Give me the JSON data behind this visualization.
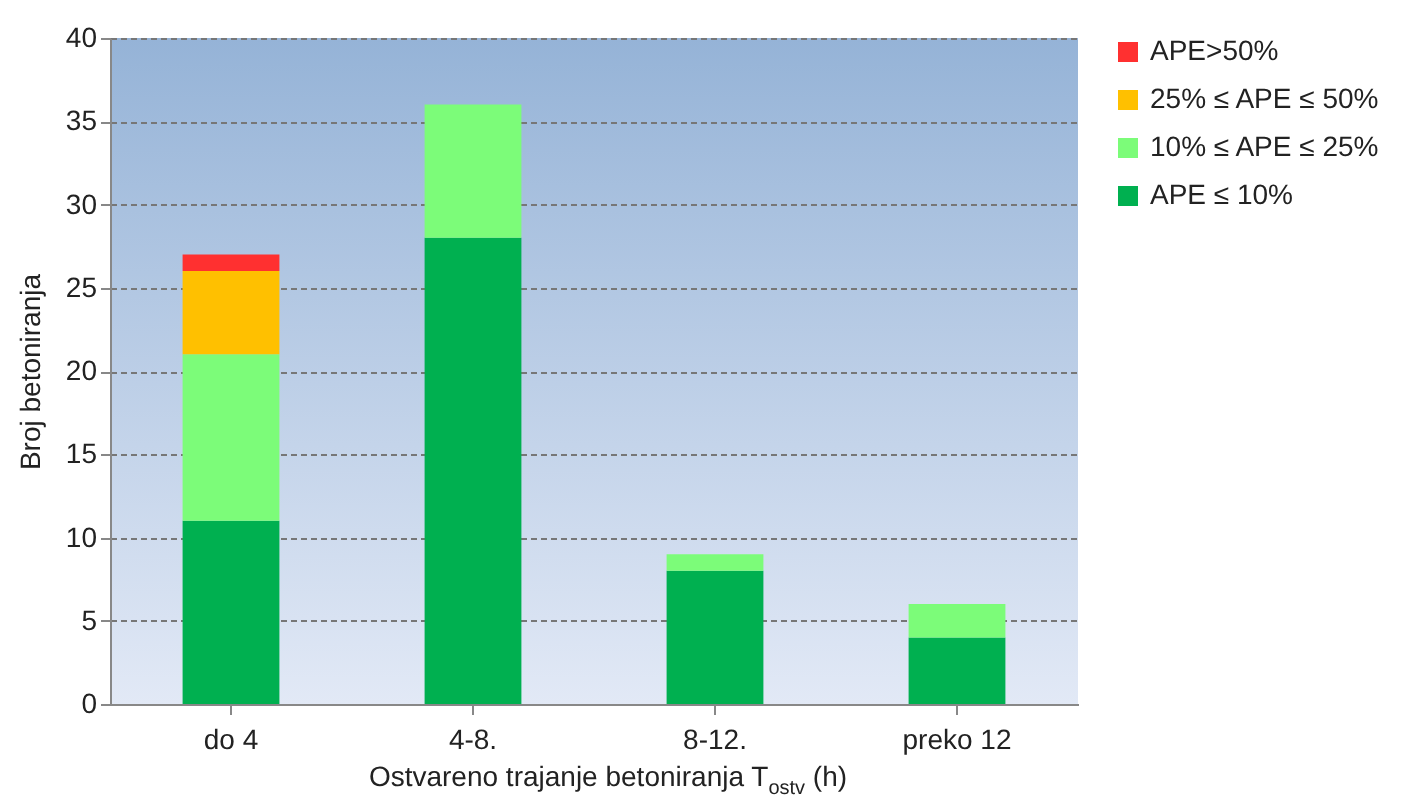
{
  "chart_data": {
    "type": "bar",
    "stacked": true,
    "xlabel": "Ostvareno trajanje  betoniranja T$_{ostv}$ (h)",
    "ylabel": "Broj betoniranja",
    "categories": [
      "do 4",
      "4-8.",
      "8-12.",
      "preko 12"
    ],
    "series": [
      {
        "name": "APE ≤ 10%",
        "color": "#00b050",
        "values": [
          11,
          28,
          8,
          4
        ]
      },
      {
        "name": "10% ≤ APE ≤ 25%",
        "color": "#7cfc79",
        "values": [
          10,
          8,
          1,
          2
        ]
      },
      {
        "name": "25% ≤ APE ≤ 50%",
        "color": "#ffc000",
        "values": [
          5,
          0,
          0,
          0
        ]
      },
      {
        "name": "APE>50%",
        "color": "#ff3030",
        "values": [
          1,
          0,
          0,
          0
        ]
      }
    ],
    "ylim": [
      0,
      40
    ],
    "yticks": [
      0,
      5,
      10,
      15,
      20,
      25,
      30,
      35,
      40
    ],
    "grid": "y",
    "legend": "right"
  }
}
